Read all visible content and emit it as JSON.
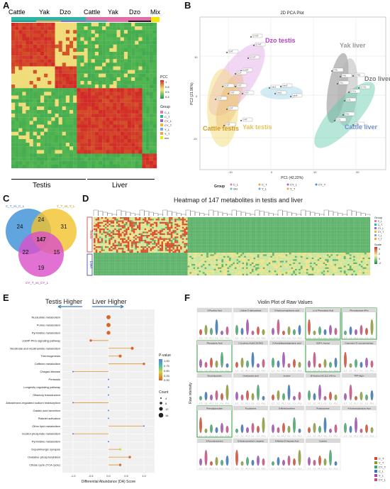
{
  "panels": {
    "A": {
      "letter": "A"
    },
    "B": {
      "letter": "B"
    },
    "C": {
      "letter": "C"
    },
    "D": {
      "letter": "D"
    },
    "E": {
      "letter": "E"
    },
    "F": {
      "letter": "F"
    }
  },
  "panelA": {
    "top_groups": [
      "Cattle",
      "Yak",
      "Dzo",
      "Cattle",
      "Yak",
      "Dzo",
      "Mix"
    ],
    "top_group_colors": [
      "#2bb6a5",
      "#2bb6a5",
      "#2bb6a5",
      "#e06fa8",
      "#e06fa8",
      "#e06fa8",
      "#f3e600"
    ],
    "bottom_labels": [
      "Testis",
      "Liver"
    ],
    "legend_title": "PCC",
    "legend_ticks": [
      "1",
      "0.8",
      "0.6",
      "0.4"
    ],
    "group_legend_title": "Group",
    "group_legend_items": [
      "C_L",
      "C_T",
      "CY_L",
      "CY_T",
      "Y_L",
      "Y_T",
      "mix"
    ],
    "group_legend_colors": [
      "#e07ab5",
      "#2bb6a5",
      "#9c69c6",
      "#e8b93f",
      "#7aa8d8",
      "#f2a641",
      "#f3e600"
    ]
  },
  "panelB": {
    "title": "2D PCA Plot",
    "xlabel": "PC1 (42.22%)",
    "ylabel": "PC2 (21.96%)",
    "ellipse_labels": [
      {
        "text": "Dzo\ntestis",
        "color": "#b341c9"
      },
      {
        "text": "Yak\nliver",
        "color": "#9a9a9a"
      },
      {
        "text": "Dzo\nliver",
        "color": "#7a7a7a"
      },
      {
        "text": "Cattle\ntestis",
        "color": "#d39b1c"
      },
      {
        "text": "Yak\ntestis",
        "color": "#e8c45a"
      },
      {
        "text": "Cattle\nliver",
        "color": "#6f8fd0"
      }
    ],
    "legend_title": "Group",
    "legend_items": [
      "C_L",
      "C_T",
      "CY_L",
      "CY_T",
      "mix",
      "Y_L",
      "Y_T"
    ],
    "x_ticks": [
      "-10",
      "0",
      "10",
      "20"
    ],
    "y_ticks": [
      "10",
      "0",
      "-10"
    ],
    "point_labels": [
      "CY3T",
      "CY6T",
      "C4T",
      "CY2T",
      "CY5T",
      "C2T",
      "C3T",
      "C1T",
      "Y5T",
      "Y2T",
      "Y1T",
      "C5T",
      "Y3T",
      "Y4T",
      "mix1",
      "mix2",
      "mix3",
      "mix4",
      "Y3L",
      "Y4L",
      "Y1L",
      "CY6L",
      "CY3L",
      "CY1L",
      "C3L",
      "C6L",
      "C2L",
      "Y5L"
    ]
  },
  "panelC": {
    "circle_labels": [
      "C_T_vs_C_L",
      "Y_T_vs_Y_L",
      "CY_T_vs_CY_L"
    ],
    "values": [
      "24",
      "24",
      "31",
      "147",
      "22",
      "15",
      "19"
    ]
  },
  "panelD": {
    "title": "Heatmap of 147 metabolites in testis and liver",
    "row_labels": [
      "Testis",
      "Liver"
    ],
    "legend_title": "Group",
    "scale_title": "Scale",
    "scale_ticks": [
      "4",
      "2",
      "0",
      "-2"
    ],
    "group_items": [
      "C_L",
      "C_T",
      "CY_L",
      "CY_T",
      "Y_L",
      "Y_T"
    ]
  },
  "panelE": {
    "header_left": "Testis Higher",
    "header_right": "Liver Higher",
    "xlabel": "Differential Abundance (DA) Score",
    "x_ticks": [
      "-1.0",
      "-0.5",
      "0.0",
      "0.5",
      "1.0"
    ],
    "pathways": [
      {
        "name": "Nucleotide metabolism",
        "score": 0.0,
        "count": 12,
        "p": 0.1
      },
      {
        "name": "Purine metabolism",
        "score": 0.0,
        "count": 12,
        "p": 0.1
      },
      {
        "name": "Pyrimidine metabolism",
        "score": 0.0,
        "count": 10,
        "p": 0.1
      },
      {
        "name": "cGMP-PKG signaling pathway",
        "score": -0.5,
        "count": 4,
        "p": 0.2
      },
      {
        "name": "Nicotinate and nicotinamide metabolism",
        "score": 0.67,
        "count": 6,
        "p": 0.1
      },
      {
        "name": "Thermogenesis",
        "score": 0.33,
        "count": 6,
        "p": 0.1
      },
      {
        "name": "Caffeine metabolism",
        "score": 1.0,
        "count": 4,
        "p": 0.1
      },
      {
        "name": "Chagas disease",
        "score": -1.0,
        "count": 1,
        "p": 0.8
      },
      {
        "name": "Pertussis",
        "score": 0.0,
        "count": 1,
        "p": 0.8
      },
      {
        "name": "Longevity regulating pathway",
        "score": 0.0,
        "count": 1,
        "p": 0.8
      },
      {
        "name": "Olfactory transduction",
        "score": 0.0,
        "count": 1,
        "p": 0.8
      },
      {
        "name": "Aldosterone-regulated sodium reabsorption",
        "score": -1.0,
        "count": 1,
        "p": 0.8
      },
      {
        "name": "Gastric acid secretion",
        "score": 0.0,
        "count": 1,
        "p": 0.8
      },
      {
        "name": "Platelet activation",
        "score": 0.0,
        "count": 1,
        "p": 0.8
      },
      {
        "name": "Other lipid metabolism",
        "score": 1.0,
        "count": 1,
        "p": 0.8
      },
      {
        "name": "inositol phosphate metabolism",
        "score": -1.0,
        "count": 1,
        "p": 0.8
      },
      {
        "name": "Pyrimidine metabolism",
        "score": 0.0,
        "count": 1,
        "p": 0.8
      },
      {
        "name": "Dopaminergic synapse",
        "score": 0.33,
        "count": 3,
        "p": 0.3
      },
      {
        "name": "Oxidative phosphorylation",
        "score": 0.6,
        "count": 4,
        "p": 0.2
      },
      {
        "name": "Citrate cycle (TCA cycle)",
        "score": 0.33,
        "count": 4,
        "p": 0.2
      }
    ],
    "pvalue_title": "P-value",
    "pvalue_ticks": [
      "1.00",
      "0.75",
      "0.50",
      "0.25",
      "0.00"
    ],
    "count_title": "Count",
    "count_ticks": [
      "4",
      "8",
      "12",
      "16"
    ]
  },
  "panelF": {
    "title": "Violin Plot of Raw Values",
    "ylabel": "Raw intensity",
    "facets": [
      "3-Picolinic Acid",
      "Uridine 5'-diphosphate",
      "3-Hydroxyisoglutamic acid",
      "L-(+)-Phenylactic Acid",
      "Phenylacetate (Pho",
      "Phenylactic Acid",
      "2-Linolenic Acid(C18:3N3)",
      "N-Acetyllaspartylglutamic acid",
      "GDP-L-fucose",
      "Guanosine-5'-monophosphate",
      "Glucohippurate",
      "Oxaloacetic acid",
      "Inosine",
      "(8-Hydroxy-6Z,11Z,14Z-eic",
      "TPP-Mg2+",
      "Phenylglyoxylate",
      "Fucolamine",
      "8-Methylxanthine",
      "Pyridoxamine",
      "4-Acetamidobutyric Acid",
      "3-Pyroxidoxamine",
      "N-Hydroxymethyl-L-aspartic",
      "N-Methyl-D-Aspartic Acid",
      "Cotinine",
      ""
    ],
    "legend_items": [
      "C_T",
      "Y_T",
      "CY_T",
      "C_L",
      "Y_L",
      "CY_L"
    ],
    "legend_colors": [
      "#d6452b",
      "#8a9b2c",
      "#3aa76b",
      "#3474b6",
      "#a247b3",
      "#c74a80"
    ],
    "x_labels": [
      "C_T",
      "Y_T",
      "CY_T",
      "C_L",
      "Y_L",
      "CY_L"
    ]
  }
}
